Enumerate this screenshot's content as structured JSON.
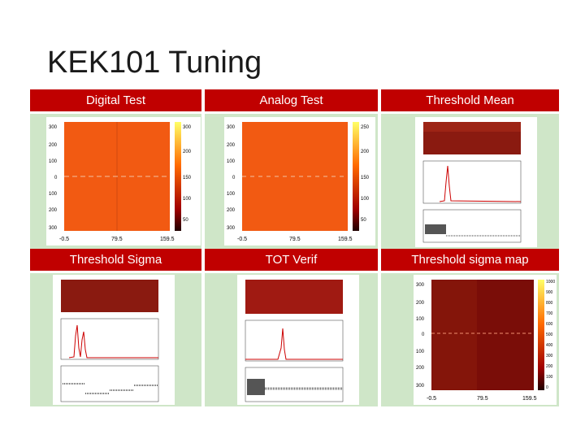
{
  "slide": {
    "title": "KEK101 Tuning"
  },
  "headers": {
    "row1": [
      "Digital Test",
      "Analog Test",
      "Threshold Mean"
    ],
    "row2": [
      "Threshold Sigma",
      "TOT Verif",
      "Threshold sigma map"
    ]
  },
  "maps": {
    "digital": {
      "yticks": [
        "300",
        "200",
        "100",
        "0",
        "100",
        "200",
        "300"
      ],
      "xticks": [
        "-0.5",
        "79.5",
        "159.5"
      ],
      "zticks": [
        "300",
        "200",
        "150",
        "100",
        "50"
      ]
    },
    "analog": {
      "yticks": [
        "300",
        "200",
        "100",
        "0",
        "100",
        "200",
        "300"
      ],
      "xticks": [
        "-0.5",
        "79.5",
        "159.5"
      ],
      "zticks": [
        "250",
        "200",
        "150",
        "100",
        "50"
      ]
    },
    "sigma_map": {
      "yticks": [
        "300",
        "200",
        "100",
        "0",
        "100",
        "200",
        "300"
      ],
      "xticks": [
        "-0.5",
        "79.5",
        "159.5"
      ],
      "zticks": [
        "1000",
        "900",
        "800",
        "700",
        "600",
        "500",
        "400",
        "300",
        "200",
        "100",
        "0"
      ]
    }
  },
  "colors": {
    "header_bg": "#c00000",
    "cell_bg": "#cfe6c8",
    "map_orange": "#f25a12",
    "map_dark": "#7a0d08"
  }
}
